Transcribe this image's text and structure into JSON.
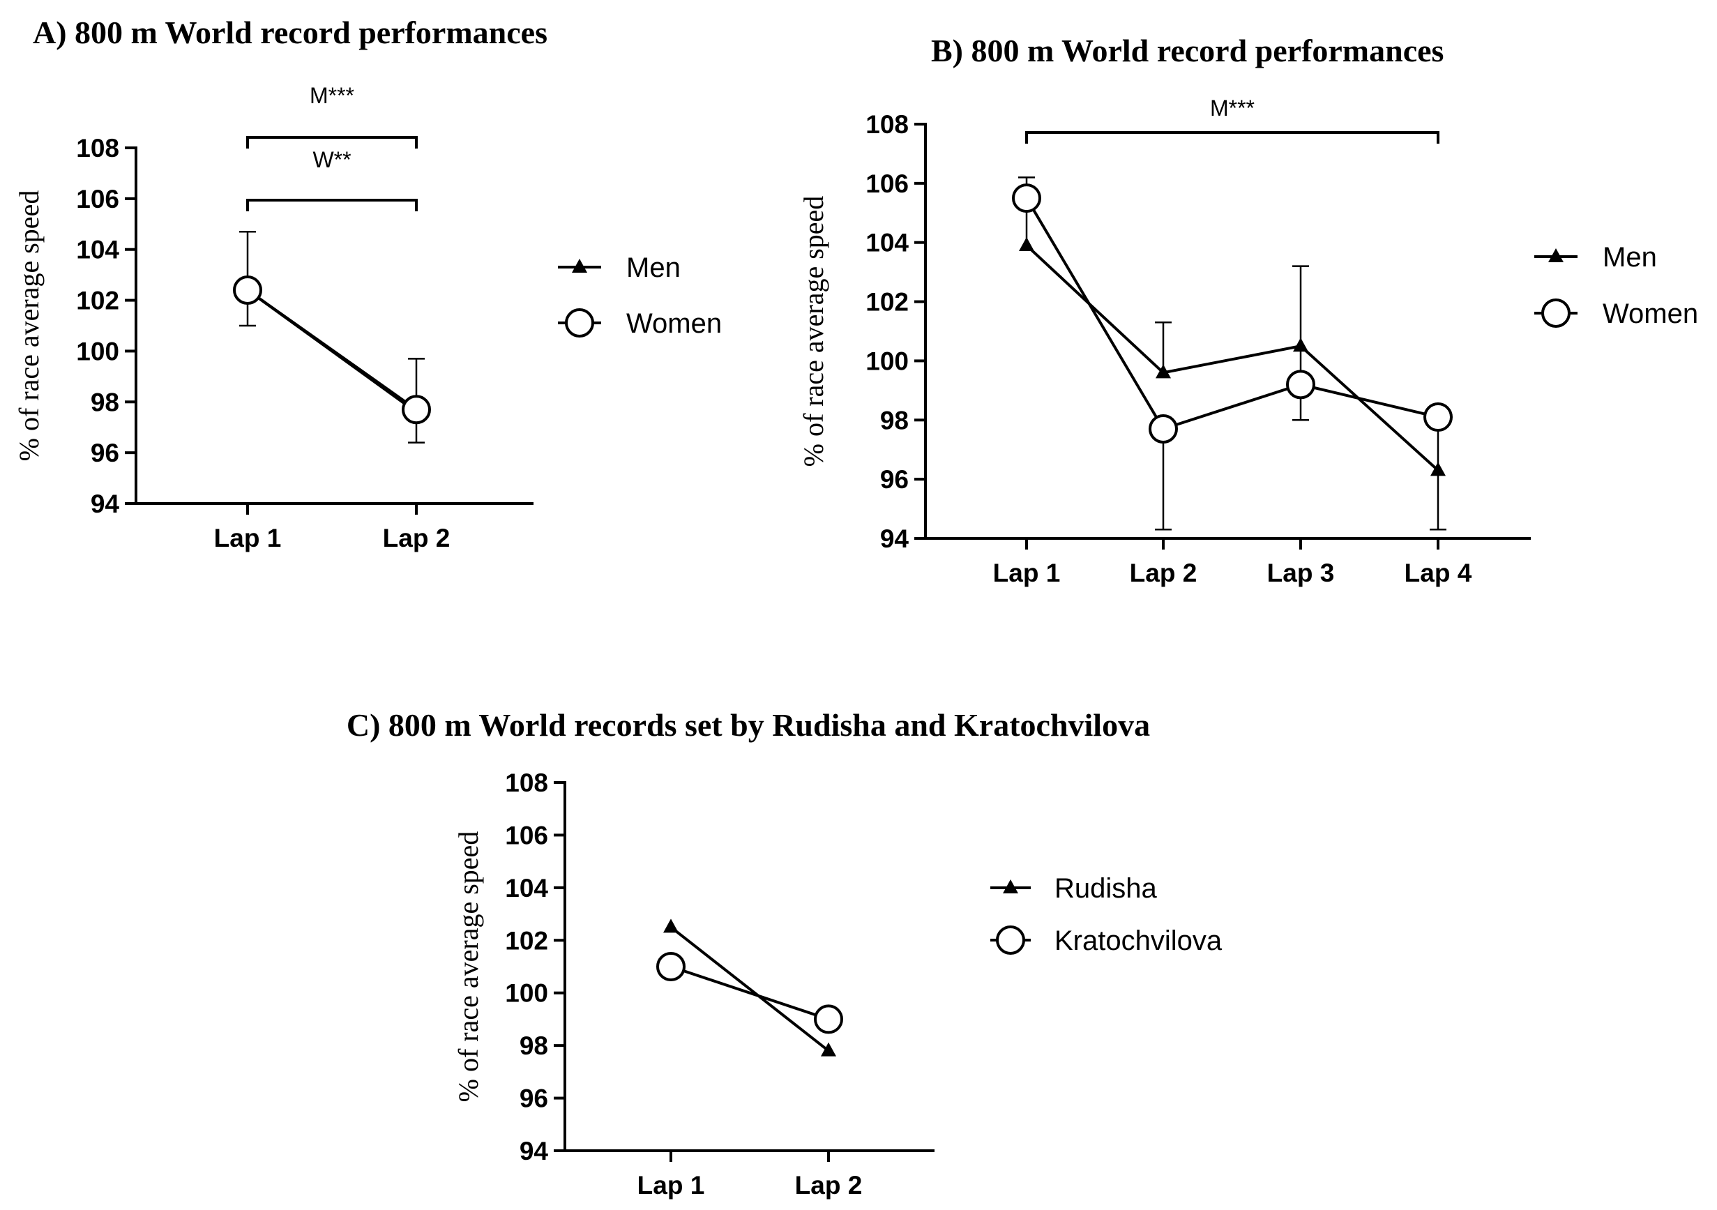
{
  "chart_data": [
    {
      "type": "line",
      "title": "A) 800 m World record performances",
      "xlabel": "",
      "ylabel": "% of race average speed",
      "categories": [
        "Lap 1",
        "Lap 2"
      ],
      "ylim": [
        94,
        108
      ],
      "yticks": [
        "94",
        "96",
        "98",
        "100",
        "102",
        "104",
        "106",
        "108"
      ],
      "legend_position": "right",
      "series": [
        {
          "name": "Men",
          "marker": "triangle",
          "values": [
            102.4,
            97.6
          ],
          "err_upper": [
            104.7,
            99.7
          ],
          "err_lower": [
            101.0,
            96.4
          ]
        },
        {
          "name": "Women",
          "marker": "circle",
          "values": [
            102.4,
            97.7
          ],
          "err_upper": [
            null,
            null
          ],
          "err_lower": [
            null,
            null
          ]
        }
      ],
      "annotations": [
        {
          "text": "M***",
          "from": 0,
          "to": 1
        },
        {
          "text": "W**",
          "from": 0,
          "to": 1
        }
      ]
    },
    {
      "type": "line",
      "title": "B) 800 m World record performances",
      "xlabel": "",
      "ylabel": "% of race average speed",
      "categories": [
        "Lap 1",
        "Lap 2",
        "Lap 3",
        "Lap 4"
      ],
      "ylim": [
        94,
        108
      ],
      "yticks": [
        "94",
        "96",
        "98",
        "100",
        "102",
        "104",
        "106",
        "108"
      ],
      "legend_position": "right",
      "series": [
        {
          "name": "Men",
          "marker": "triangle",
          "values": [
            103.9,
            99.6,
            100.5,
            96.3
          ],
          "err_upper": [
            106.2,
            101.3,
            103.2,
            98.0
          ],
          "err_lower": [
            null,
            null,
            98.0,
            94.3
          ]
        },
        {
          "name": "Women",
          "marker": "circle",
          "values": [
            105.5,
            97.7,
            99.2,
            98.1
          ],
          "err_upper": [
            null,
            null,
            null,
            null
          ],
          "err_lower": [
            null,
            94.3,
            null,
            null
          ]
        }
      ],
      "annotations": [
        {
          "text": "M***",
          "from": 0,
          "to": 3
        }
      ]
    },
    {
      "type": "line",
      "title": "C) 800 m World records set by Rudisha and Kratochvilova",
      "xlabel": "",
      "ylabel": "% of race average speed",
      "categories": [
        "Lap 1",
        "Lap 2"
      ],
      "ylim": [
        94,
        108
      ],
      "yticks": [
        "94",
        "96",
        "98",
        "100",
        "102",
        "104",
        "106",
        "108"
      ],
      "legend_position": "right",
      "series": [
        {
          "name": "Rudisha",
          "marker": "triangle",
          "values": [
            102.5,
            97.8
          ]
        },
        {
          "name": "Kratochvilova",
          "marker": "circle",
          "values": [
            101.0,
            99.0
          ]
        }
      ],
      "annotations": []
    }
  ]
}
